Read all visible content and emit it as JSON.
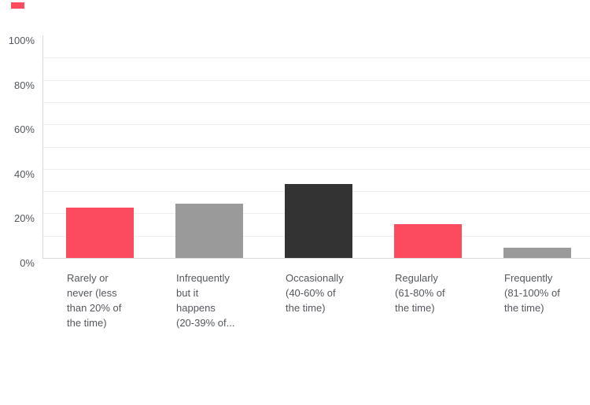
{
  "chart_data": {
    "type": "bar",
    "title": "",
    "categories": [
      "Rarely or never (less than 20% of the time)",
      "Infrequently but it happens (20-39% of...",
      "Occasionally (40-60% of the time)",
      "Regularly (61-80% of the time)",
      "Frequently (81-100% of the time)"
    ],
    "category_label_lines": [
      "Rarely or\nnever (less\nthan 20% of\nthe time)",
      "Infrequently\nbut it\nhappens\n(20-39% of...",
      "Occasionally\n(40-60% of\nthe time)",
      "Regularly\n(61-80% of\nthe time)",
      "Frequently\n(81-100% of\nthe time)"
    ],
    "values": [
      22.73,
      24.24,
      33.33,
      15.15,
      4.55
    ],
    "bar_colors": [
      "#FC4A5F",
      "#9A9A9A",
      "#333333",
      "#FC4A5F",
      "#9A9A9A"
    ],
    "xlabel": "",
    "ylabel": "",
    "ylim": [
      0,
      100
    ],
    "y_tick_labels": [
      "100%",
      "80%",
      "60%",
      "40%",
      "20%",
      "0%"
    ],
    "y_tick_values": [
      100,
      80,
      60,
      40,
      20,
      0
    ],
    "gridline_step_pct": 10,
    "grid": "horizontal",
    "legend_position": "none"
  },
  "colors": {
    "accent_pink": "#FC4A5F",
    "bar_gray": "#9A9A9A",
    "bar_dark": "#333333",
    "gridline": "#EFEFEF",
    "axis_line": "#D9D9D9",
    "label_text": "#55585E",
    "background": "#FFFFFF"
  },
  "decor": {
    "corner_mark_color": "#FC4A5F"
  }
}
